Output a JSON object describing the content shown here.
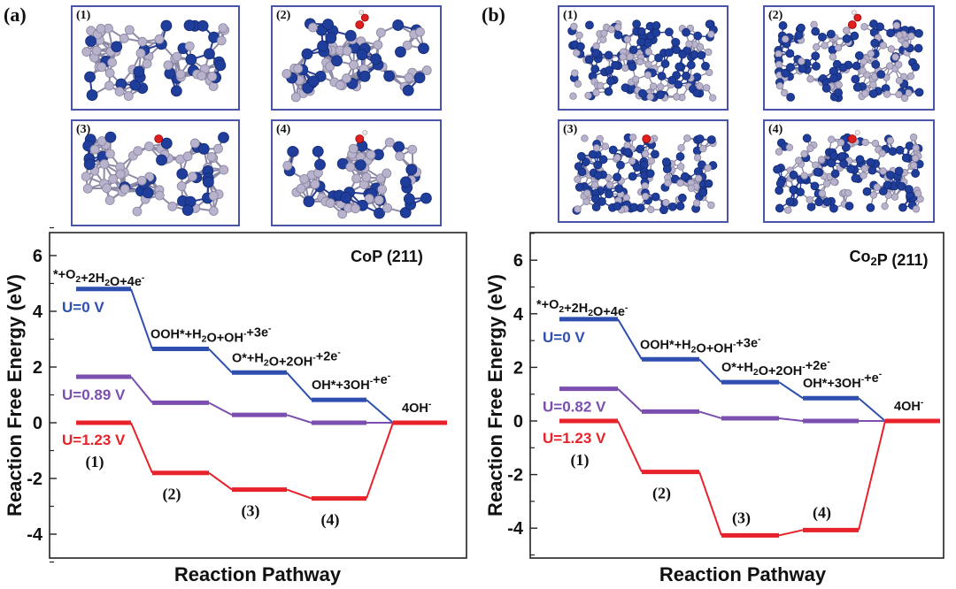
{
  "panels": [
    {
      "tag": "(a)",
      "structures": [
        "(1)",
        "(2)",
        "(3)",
        "(4)"
      ],
      "structure_colors": {
        "cobalt": "#1f3d9b",
        "phosphorus": "#b8b2cc",
        "oxygen": "#e02020",
        "hydrogen": "#f4e8ea"
      }
    },
    {
      "tag": "(b)",
      "structures": [
        "(1)",
        "(2)",
        "(3)",
        "(4)"
      ],
      "structure_colors": {
        "cobalt": "#1f3d9b",
        "phosphorus": "#b8b2cc",
        "oxygen": "#e02020",
        "hydrogen": "#f4e8ea"
      }
    }
  ],
  "chart_data": [
    {
      "type": "line",
      "title": "CoP (211)",
      "xlabel": "Reaction Pathway",
      "ylabel": "Reaction Free Energy (eV)",
      "ylim": [
        -5,
        7
      ],
      "yticks": [
        -4,
        -2,
        0,
        2,
        4,
        6
      ],
      "grid": false,
      "steps": [
        "*+O2+2H2O+4e-",
        "OOH*+H2O+OH-+3e-",
        "O*+H2O+2OH-+2e-",
        "OH*+3OH-+e-",
        "4OH-"
      ],
      "step_labels": [
        "(1)",
        "(2)",
        "(3)",
        "(4)"
      ],
      "series": [
        {
          "name": "U=0 V",
          "color": "#2f4fb0",
          "values": [
            4.8,
            2.65,
            1.8,
            0.82,
            0
          ]
        },
        {
          "name": "U=0.89 V",
          "color": "#7a4fb0",
          "values": [
            1.65,
            0.72,
            0.28,
            0.0,
            0
          ]
        },
        {
          "name": "U=1.23 V",
          "color": "#e8222a",
          "values": [
            0,
            -1.8,
            -2.4,
            -2.72,
            0
          ]
        }
      ]
    },
    {
      "type": "line",
      "title": "Co2P (211)",
      "xlabel": "Reaction Pathway",
      "ylabel": "Reaction Free Energy (eV)",
      "ylim": [
        -5,
        7
      ],
      "yticks": [
        -4,
        -2,
        0,
        2,
        4,
        6
      ],
      "grid": false,
      "steps": [
        "*+O2+2H2O+4e-",
        "OOH*+H2O+OH-+3e-",
        "O*+H2O+2OH-+2e-",
        "OH*+3OH-+e-",
        "4OH-"
      ],
      "step_labels": [
        "(1)",
        "(2)",
        "(3)",
        "(4)"
      ],
      "series": [
        {
          "name": "U=0 V",
          "color": "#2f4fb0",
          "values": [
            3.8,
            2.3,
            1.45,
            0.85,
            0
          ]
        },
        {
          "name": "U=0.82 V",
          "color": "#7a4fb0",
          "values": [
            1.2,
            0.35,
            0.1,
            0.0,
            0
          ]
        },
        {
          "name": "U=1.23 V",
          "color": "#e8222a",
          "values": [
            0,
            -1.9,
            -4.27,
            -4.07,
            0
          ]
        }
      ]
    }
  ]
}
